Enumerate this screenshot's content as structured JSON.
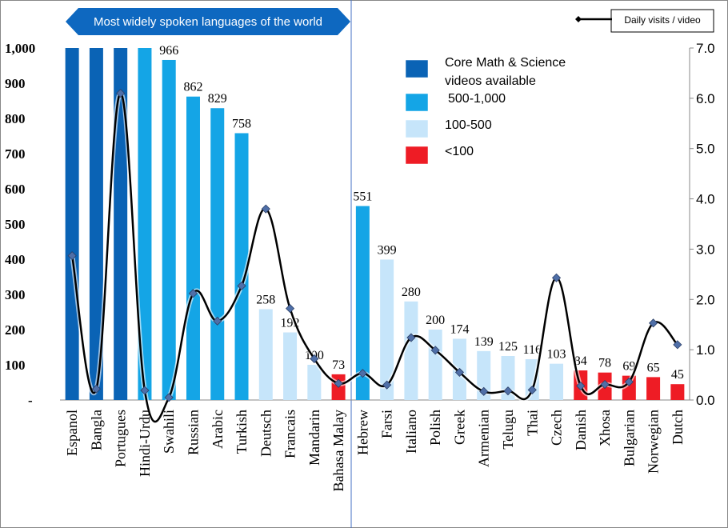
{
  "chart_data": {
    "type": "bar",
    "banner": "Most widely spoken languages of the world",
    "categories": [
      "Espanol",
      "Bangla",
      "Portugues",
      "Hindi-Urdu",
      "Swahili",
      "Russian",
      "Arabic",
      "Turkish",
      "Deutsch",
      "Francais",
      "Mandarin",
      "Bahasa Malay",
      "Hebrew",
      "Farsi",
      "Italiano",
      "Polish",
      "Greek",
      "Armenian",
      "Telugu",
      "Thai",
      "Czech",
      "Danish",
      "Xhosa",
      "Bulgarian",
      "Norwegian",
      "Dutch"
    ],
    "values": [
      1000,
      1000,
      1000,
      1000,
      966,
      862,
      829,
      758,
      258,
      192,
      100,
      73,
      551,
      399,
      280,
      200,
      174,
      139,
      125,
      116,
      103,
      84,
      78,
      69,
      65,
      45
    ],
    "value_labels": [
      "",
      "",
      "",
      "",
      "966",
      "862",
      "829",
      "758",
      "258",
      "192",
      "100",
      "73",
      "551",
      "399",
      "280",
      "200",
      "174",
      "139",
      "125",
      "116",
      "103",
      "84",
      "78",
      "69",
      "65",
      "45"
    ],
    "bar_groups": [
      0,
      0,
      0,
      1,
      1,
      1,
      1,
      1,
      2,
      2,
      2,
      3,
      1,
      2,
      2,
      2,
      2,
      2,
      2,
      2,
      2,
      3,
      3,
      3,
      3,
      3
    ],
    "line_series": {
      "name": "Daily visits / video",
      "values": [
        2.87,
        0.22,
        6.1,
        0.19,
        0.05,
        2.12,
        1.57,
        2.27,
        3.8,
        1.82,
        0.82,
        0.33,
        0.53,
        0.3,
        1.24,
        0.99,
        0.55,
        0.17,
        0.18,
        0.2,
        2.43,
        0.28,
        0.31,
        0.36,
        1.53,
        1.1
      ],
      "color": "#000000",
      "marker_color": "#4F6FA8"
    },
    "legend": [
      {
        "label_lines": [
          "Core Math & Science",
          "videos available"
        ],
        "color": "#0A63B5"
      },
      {
        "label_lines": [
          "500-1,000"
        ],
        "color": "#14A5E6"
      },
      {
        "label_lines": [
          "100-500"
        ],
        "color": "#C6E5FA"
      },
      {
        "label_lines": [
          "<100"
        ],
        "color": "#EE1C25"
      }
    ],
    "y_left": {
      "ylim": [
        0,
        1000
      ],
      "ticks": [
        0,
        100,
        200,
        300,
        400,
        500,
        600,
        700,
        800,
        900,
        1000
      ],
      "tick_labels": [
        "-",
        "100",
        "200",
        "300",
        "400",
        "500",
        "600",
        "700",
        "800",
        "900",
        "1,000"
      ]
    },
    "y_right": {
      "ylim": [
        0,
        7
      ],
      "ticks": [
        0,
        1,
        2,
        3,
        4,
        5,
        6,
        7
      ],
      "tick_labels": [
        "0.0",
        "1.0",
        "2.0",
        "3.0",
        "4.0",
        "5.0",
        "6.0",
        "7.0"
      ]
    },
    "banner_color": "#0E68C0",
    "legend_placement": "top-right"
  }
}
